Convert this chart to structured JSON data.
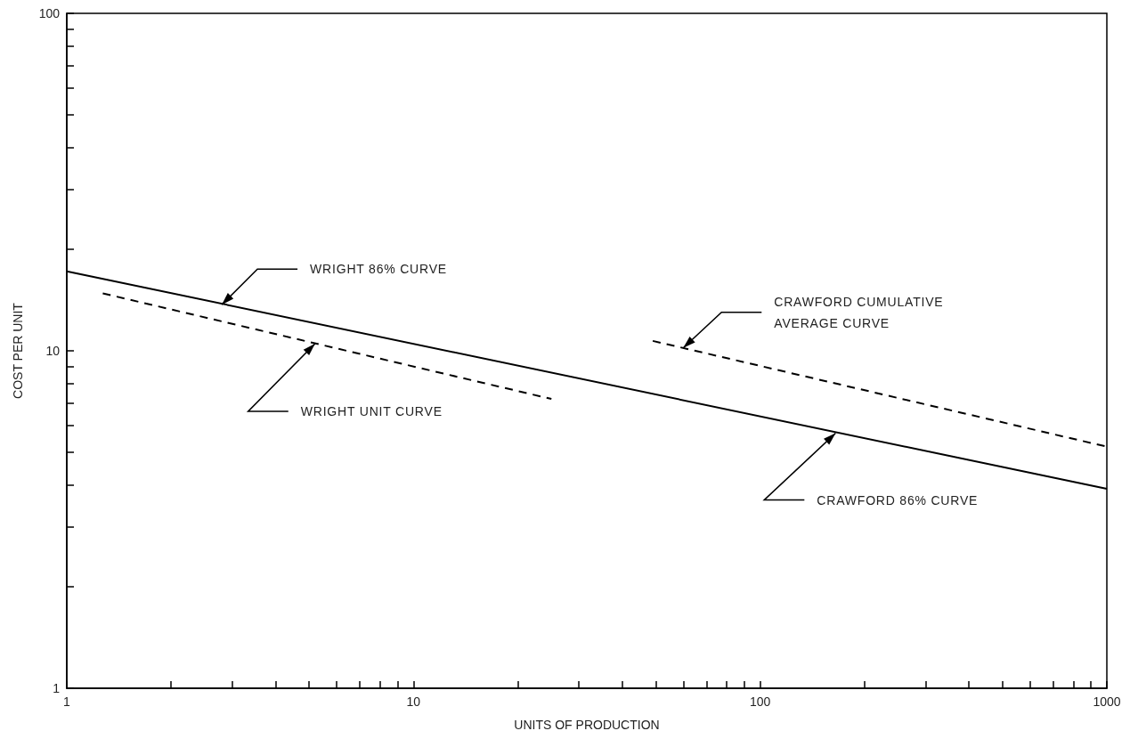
{
  "chart_data": {
    "type": "line",
    "xlabel": "UNITS OF PRODUCTION",
    "ylabel": "COST PER UNIT",
    "log": "xy",
    "grid": false,
    "marker": "none",
    "xlim": [
      1,
      1000
    ],
    "xticks": [
      1,
      {
        "value": 2,
        "label": null
      },
      {
        "value": 3,
        "label": null
      },
      {
        "value": 4,
        "label": null
      },
      {
        "value": 5,
        "label": null
      },
      {
        "value": 6,
        "label": null
      },
      {
        "value": 7,
        "label": null
      },
      {
        "value": 8,
        "label": null
      },
      {
        "value": 9,
        "label": null
      },
      10,
      {
        "value": 20,
        "label": null
      },
      {
        "value": 30,
        "label": null
      },
      {
        "value": 40,
        "label": null
      },
      {
        "value": 50,
        "label": null
      },
      {
        "value": 60,
        "label": null
      },
      {
        "value": 70,
        "label": null
      },
      {
        "value": 80,
        "label": null
      },
      {
        "value": 90,
        "label": null
      },
      100,
      {
        "value": 200,
        "label": null
      },
      {
        "value": 300,
        "label": null
      },
      {
        "value": 400,
        "label": null
      },
      {
        "value": 500,
        "label": null
      },
      {
        "value": 600,
        "label": null
      },
      {
        "value": 700,
        "label": null
      },
      {
        "value": 800,
        "label": null
      },
      {
        "value": 900,
        "label": null
      },
      1000
    ],
    "ylim": [
      1,
      100
    ],
    "yticks": [
      1,
      {
        "value": 2,
        "label": null
      },
      {
        "value": 3,
        "label": null
      },
      {
        "value": 4,
        "label": null
      },
      {
        "value": 5,
        "label": null
      },
      {
        "value": 6,
        "label": null
      },
      {
        "value": 7,
        "label": null
      },
      {
        "value": 8,
        "label": null
      },
      {
        "value": 9,
        "label": null
      },
      10,
      {
        "value": 20,
        "label": null
      },
      {
        "value": 30,
        "label": null
      },
      {
        "value": 40,
        "label": null
      },
      {
        "value": 50,
        "label": null
      },
      {
        "value": 60,
        "label": null
      },
      {
        "value": 70,
        "label": null
      },
      {
        "value": 80,
        "label": null
      },
      {
        "value": 90,
        "label": null
      },
      100
    ],
    "series": [
      {
        "color": "#000000",
        "line_style": "solid",
        "x": [
          1,
          1000
        ],
        "values": [
          17.2,
          3.9
        ]
      },
      {
        "color": "#000000",
        "line_style": "dashed",
        "x": [
          1.27,
          25
        ],
        "values": [
          14.8,
          7.2
        ]
      },
      {
        "color": "#000000",
        "line_style": "dashed",
        "x": [
          49,
          1000
        ],
        "values": [
          10.7,
          5.2
        ]
      }
    ],
    "annotations": [
      {
        "text": "WRIGHT 86% CURVE",
        "x": 2.8,
        "y": 13.7
      },
      {
        "text": "WRIGHT UNIT CURVE",
        "x": 5.2,
        "y": 10.5
      },
      {
        "text": "CRAWFORD CUMULATIVE\nAVERAGE CURVE",
        "x": 60,
        "y": 10.2
      },
      {
        "text": "CRAWFORD 86% CURVE",
        "x": 165,
        "y": 5.7
      }
    ]
  }
}
